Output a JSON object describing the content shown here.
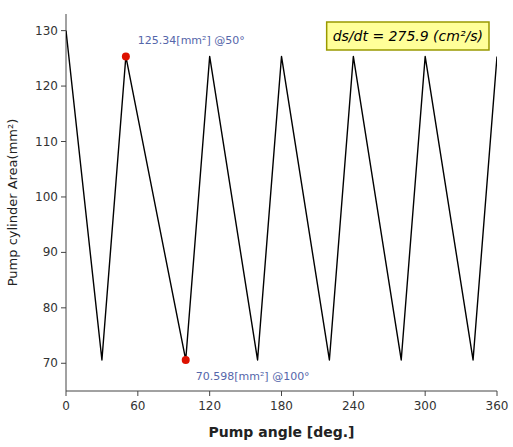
{
  "chart_data": {
    "type": "line",
    "title": "",
    "xlabel": "Pump angle [deg.]",
    "ylabel": "Pump cylinder Area(mm²)",
    "x": [
      0,
      30,
      50,
      100,
      120,
      160,
      180,
      220,
      240,
      280,
      300,
      340,
      360
    ],
    "values": [
      130,
      70.598,
      125.34,
      70.598,
      125.34,
      70.598,
      125.34,
      70.598,
      125.34,
      70.598,
      125.34,
      70.598,
      125.34
    ],
    "color": "#000000",
    "xlim": [
      0,
      360
    ],
    "ylim": [
      65,
      133
    ],
    "xticks": [
      0,
      60,
      120,
      180,
      240,
      300,
      360
    ],
    "yticks": [
      70,
      80,
      90,
      100,
      110,
      120,
      130
    ],
    "grid": false,
    "points": {
      "x": [
        50,
        100
      ],
      "values": [
        125.34,
        70.598
      ],
      "color": "#dd1100",
      "marker": "circle"
    },
    "annotations": [
      {
        "text": "125.34[mm²] @50°",
        "x": 50,
        "y": 125.34,
        "color": "#5566aa"
      },
      {
        "text": "70.598[mm²] @100°",
        "x": 100,
        "y": 70.598,
        "color": "#5566aa"
      }
    ],
    "note": {
      "text": "ds/dt = 275.9 (cm²/s)",
      "color": "#ffff99"
    }
  }
}
